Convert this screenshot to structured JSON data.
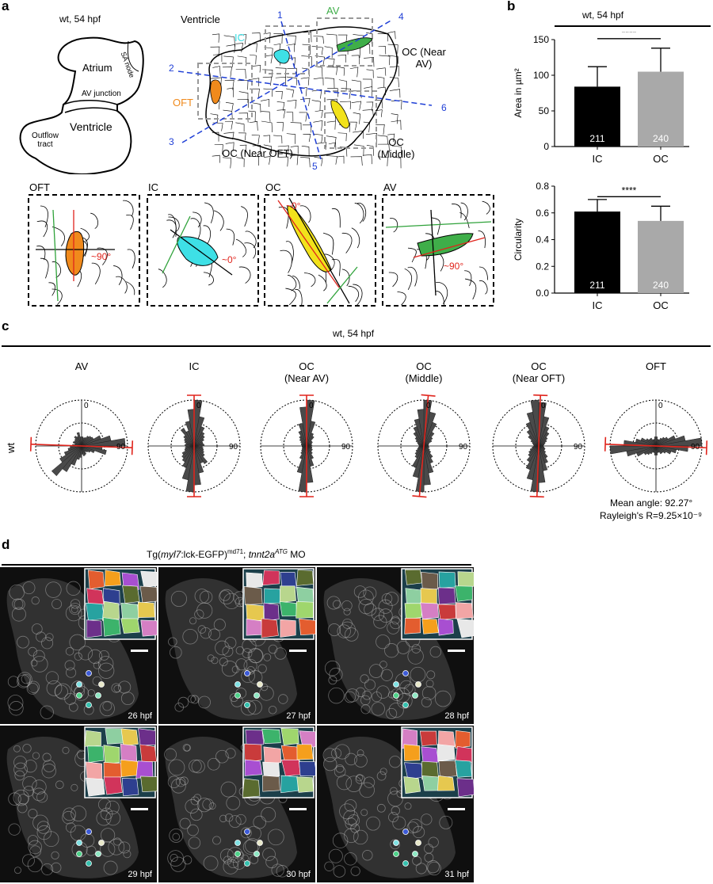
{
  "panels": {
    "a": "a",
    "b": "b",
    "c": "c",
    "d": "d"
  },
  "panel_a": {
    "schematic_title": "wt, 54 hpf",
    "schematic_labels": {
      "atrium": "Atrium",
      "sa_node": "SA node",
      "av_junction": "AV junction",
      "ventricle": "Ventricle",
      "outflow": "Outflow tract"
    },
    "map_title": "Ventricle",
    "region_labels": {
      "ic": "IC",
      "av": "AV",
      "oft": "OFT",
      "oc_near_av": "OC (Near AV)",
      "oc_middle": "OC (Middle)",
      "oc_near_oft": "OC (Near OFT)"
    },
    "axis_numbers": [
      "1",
      "2",
      "3",
      "4",
      "5",
      "6"
    ],
    "inset_titles": [
      "OFT",
      "IC",
      "OC",
      "AV"
    ],
    "inset_angles": [
      "~90°",
      "~0°",
      "~0°",
      "~90°"
    ],
    "region_colors": {
      "oft": "#f08a1c",
      "ic": "#3ee0e6",
      "oc": "#f2e21b",
      "av": "#3fae49",
      "axis": "#1f3fd6"
    }
  },
  "panel_b": {
    "title": "wt, 54 hpf",
    "significance": "****",
    "charts": [
      {
        "type": "bar",
        "ylabel": "Area in µm²",
        "categories": [
          "IC",
          "OC"
        ],
        "values": [
          84,
          105
        ],
        "errors": [
          28,
          33
        ],
        "n": [
          "211",
          "240"
        ],
        "ylim": [
          0,
          150
        ],
        "ticks": [
          "0",
          "50",
          "100",
          "150"
        ],
        "tickvals": [
          0,
          50,
          100,
          150
        ],
        "colors": [
          "#000000",
          "#a9a9a9"
        ]
      },
      {
        "type": "bar",
        "ylabel": "Circularity",
        "categories": [
          "IC",
          "OC"
        ],
        "values": [
          0.61,
          0.54
        ],
        "errors": [
          0.09,
          0.11
        ],
        "n": [
          "211",
          "240"
        ],
        "ylim": [
          0,
          0.8
        ],
        "ticks": [
          "0.0",
          "0.2",
          "0.4",
          "0.6",
          "0.8"
        ],
        "tickvals": [
          0,
          0.2,
          0.4,
          0.6,
          0.8
        ],
        "colors": [
          "#000000",
          "#a9a9a9"
        ]
      }
    ]
  },
  "panel_c": {
    "title": "wt, 54 hpf",
    "row_label": "wt",
    "tick_zero": "0",
    "tick_ninety": "90",
    "mean_angle": "Mean angle: 92.27°",
    "rayleigh": "Rayleigh's R=9.25×10⁻⁹",
    "roses": [
      {
        "title": "AV",
        "subtitle": "",
        "mean_deg": 92,
        "radii": [
          0.2,
          0.18,
          0.2,
          0.25,
          0.28,
          0.3,
          0.45,
          0.65,
          0.95,
          0.45,
          0.55,
          0.3,
          0.22,
          0.18,
          0.15,
          0.2,
          0.22,
          0.18,
          0.25,
          0.3,
          0.45,
          0.65,
          0.85,
          0.55,
          0.4,
          0.3,
          0.25,
          0.2,
          0.15,
          0.2,
          0.18,
          0.2,
          0.25,
          0.22,
          0.3,
          0.2
        ]
      },
      {
        "title": "IC",
        "subtitle": "",
        "mean_deg": 0,
        "radii": [
          1.0,
          0.65,
          0.45,
          0.35,
          0.3,
          0.25,
          0.2,
          0.2,
          0.22,
          0.18,
          0.2,
          0.22,
          0.25,
          0.3,
          0.45,
          0.4,
          0.6,
          0.85,
          1.0,
          0.75,
          0.5,
          0.4,
          0.35,
          0.3,
          0.22,
          0.2,
          0.18,
          0.2,
          0.18,
          0.22,
          0.25,
          0.3,
          0.45,
          0.35,
          0.55,
          0.8
        ]
      },
      {
        "title": "OC",
        "subtitle": "(Near AV)",
        "mean_deg": 0,
        "radii": [
          1.0,
          0.55,
          0.3,
          0.25,
          0.15,
          0.15,
          0.12,
          0.1,
          0.12,
          0.1,
          0.12,
          0.12,
          0.15,
          0.15,
          0.2,
          0.3,
          0.45,
          0.8,
          1.0,
          0.6,
          0.3,
          0.2,
          0.15,
          0.12,
          0.1,
          0.1,
          0.1,
          0.1,
          0.12,
          0.12,
          0.15,
          0.2,
          0.25,
          0.35,
          0.5,
          0.85
        ]
      },
      {
        "title": "OC",
        "subtitle": "(Middle)",
        "mean_deg": 5,
        "radii": [
          1.0,
          0.75,
          0.55,
          0.35,
          0.25,
          0.2,
          0.12,
          0.1,
          0.1,
          0.1,
          0.12,
          0.1,
          0.15,
          0.2,
          0.3,
          0.4,
          0.6,
          0.85,
          1.0,
          0.7,
          0.5,
          0.3,
          0.25,
          0.2,
          0.15,
          0.12,
          0.1,
          0.1,
          0.12,
          0.15,
          0.2,
          0.25,
          0.35,
          0.45,
          0.6,
          0.8
        ]
      },
      {
        "title": "OC",
        "subtitle": "(Near OFT)",
        "mean_deg": 2,
        "radii": [
          0.95,
          0.65,
          0.45,
          0.35,
          0.25,
          0.2,
          0.15,
          0.12,
          0.1,
          0.1,
          0.12,
          0.15,
          0.15,
          0.2,
          0.3,
          0.4,
          0.55,
          0.8,
          1.0,
          0.75,
          0.55,
          0.4,
          0.3,
          0.25,
          0.2,
          0.15,
          0.12,
          0.1,
          0.12,
          0.15,
          0.2,
          0.3,
          0.4,
          0.55,
          0.75,
          1.0
        ]
      },
      {
        "title": "OFT",
        "subtitle": "",
        "mean_deg": 92,
        "radii": [
          0.2,
          0.15,
          0.15,
          0.2,
          0.25,
          0.3,
          0.45,
          0.65,
          1.0,
          0.7,
          0.45,
          0.35,
          0.25,
          0.2,
          0.2,
          0.15,
          0.15,
          0.2,
          0.2,
          0.15,
          0.15,
          0.2,
          0.25,
          0.3,
          0.45,
          0.65,
          1.0,
          0.7,
          0.45,
          0.35,
          0.25,
          0.2,
          0.2,
          0.15,
          0.15,
          0.2
        ]
      }
    ]
  },
  "panel_d": {
    "title_prefix": "Tg(",
    "title_gene": "myl7",
    "title_mid": ":lck-EGFP)",
    "title_sup": "md71",
    "title_sep": "; ",
    "title_mo": "tnnt2a",
    "title_mo_sup": "ATG",
    "title_suffix": " MO",
    "frames": [
      "26 hpf",
      "27 hpf",
      "28 hpf",
      "29 hpf",
      "30 hpf",
      "31 hpf"
    ],
    "mosaic_colors": [
      "#e35d2f",
      "#f59f1c",
      "#a84fd1",
      "#e8e8e8",
      "#d1345b",
      "#2e3f8f",
      "#5a6b2f",
      "#6b5b4a",
      "#27a2a0",
      "#b8d68d",
      "#8ecfa1",
      "#e6c84f",
      "#6c2f8a",
      "#3cb36b",
      "#9fd66d",
      "#d57fc4",
      "#c93b3b",
      "#f2a5a5"
    ]
  }
}
